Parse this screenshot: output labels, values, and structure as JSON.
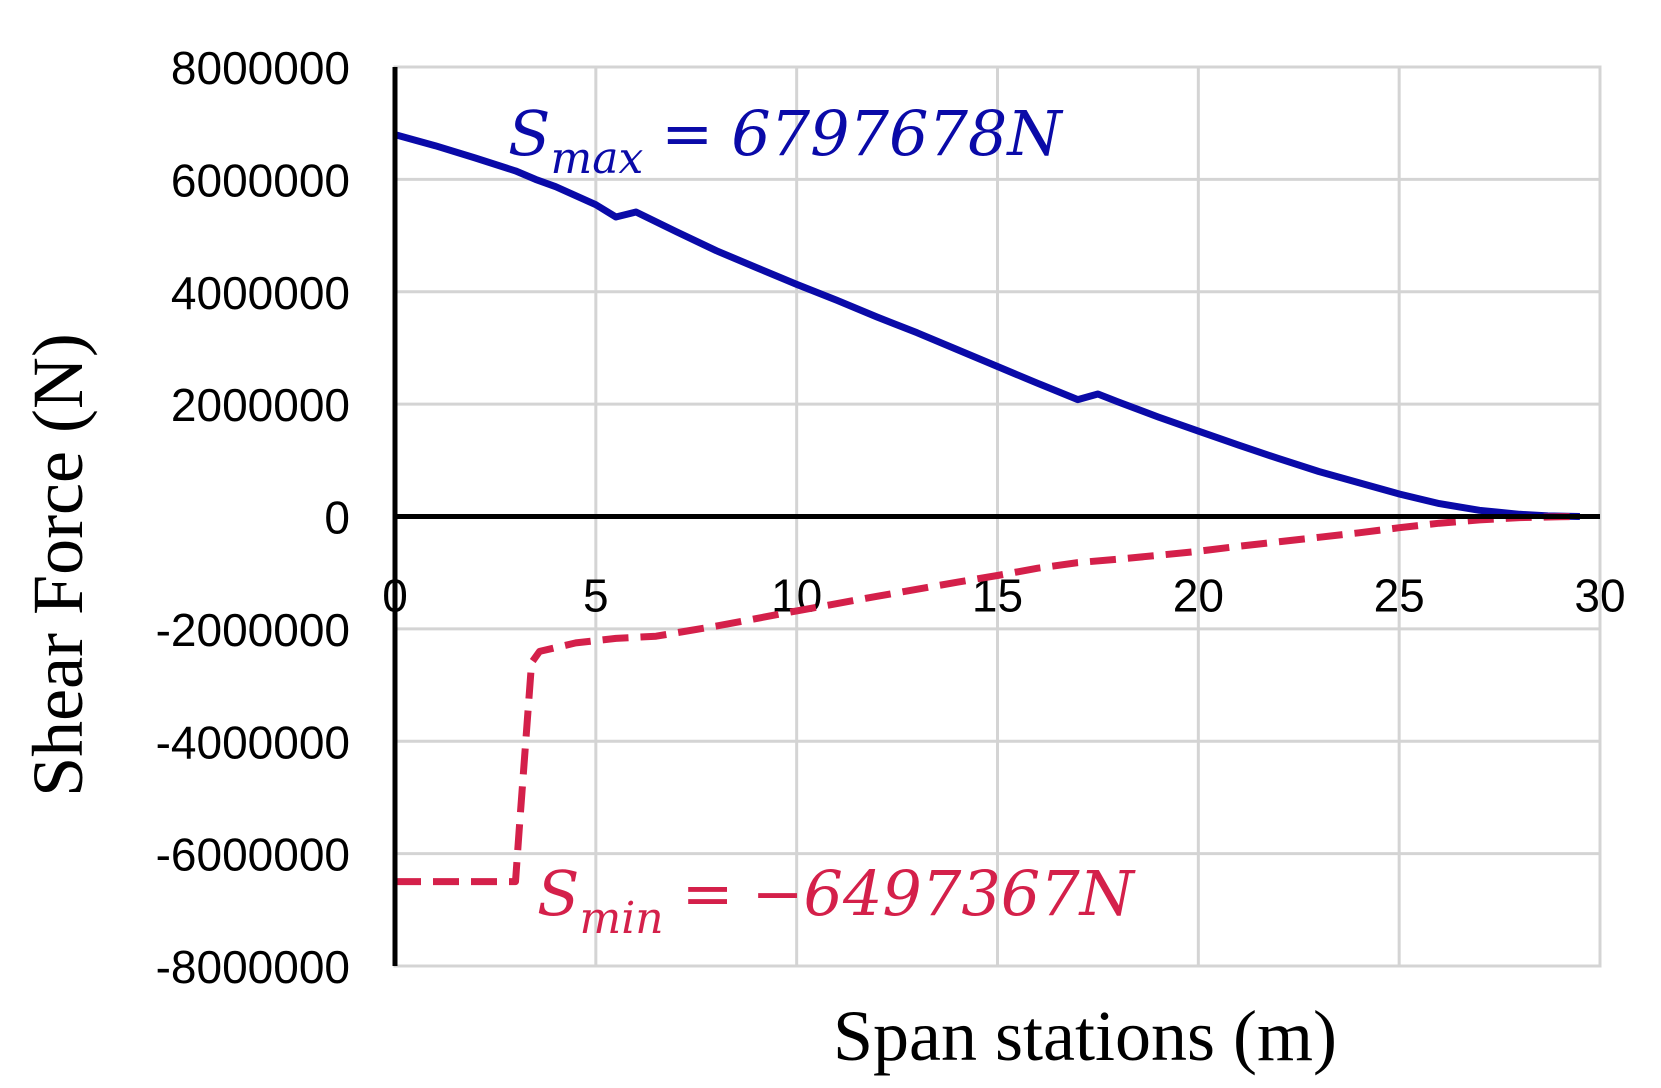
{
  "chart_data": {
    "type": "line",
    "xlabel": "Span stations (m)",
    "ylabel": "Shear Force (N)",
    "xlim": [
      0,
      30
    ],
    "ylim": [
      -8000000,
      8000000
    ],
    "x_ticks": [
      "0",
      "5",
      "10",
      "15",
      "20",
      "25",
      "30"
    ],
    "y_ticks": [
      "8000000",
      "6000000",
      "4000000",
      "2000000",
      "0",
      "-2000000",
      "-4000000",
      "-6000000",
      "-8000000"
    ],
    "grid": true,
    "colors": {
      "max": "#0a0aa8",
      "min": "#d4204a",
      "grid": "#d4d4d4",
      "axis": "#000000"
    },
    "series": [
      {
        "key": "max",
        "style": "solid",
        "x": [
          0,
          1,
          2,
          3,
          3.5,
          4,
          5,
          5.5,
          6,
          7,
          8,
          9,
          10,
          11,
          12,
          13,
          14,
          15,
          16,
          17,
          17.5,
          18,
          19,
          20,
          21,
          22,
          23,
          24,
          25,
          26,
          27,
          28,
          28.7,
          29.5
        ],
        "y": [
          6797678,
          6600000,
          6380000,
          6150000,
          6000000,
          5870000,
          5550000,
          5330000,
          5420000,
          5070000,
          4730000,
          4430000,
          4130000,
          3850000,
          3550000,
          3270000,
          2970000,
          2670000,
          2370000,
          2080000,
          2180000,
          2040000,
          1770000,
          1520000,
          1270000,
          1030000,
          800000,
          600000,
          400000,
          230000,
          110000,
          40000,
          10000,
          0
        ]
      },
      {
        "key": "min",
        "style": "dashed",
        "x": [
          0,
          3.0,
          3.1,
          3.4,
          3.6,
          4.5,
          5.5,
          6.5,
          8,
          10,
          12,
          14,
          15,
          16,
          17,
          18,
          19,
          20,
          21,
          22,
          23,
          24,
          25,
          26,
          27,
          28,
          29,
          29.5
        ],
        "y": [
          -6497367,
          -6497367,
          -5500000,
          -2600000,
          -2400000,
          -2250000,
          -2170000,
          -2130000,
          -1950000,
          -1680000,
          -1420000,
          -1170000,
          -1050000,
          -920000,
          -820000,
          -760000,
          -690000,
          -620000,
          -530000,
          -450000,
          -370000,
          -290000,
          -200000,
          -120000,
          -60000,
          -20000,
          -5000,
          0
        ]
      }
    ],
    "annotations": [
      {
        "key": "max",
        "symbol": "S",
        "sub": "max",
        "equals": "=",
        "value": "6797678N"
      },
      {
        "key": "min",
        "symbol": "S",
        "sub": "min",
        "equals": "=",
        "value": "−6497367N"
      }
    ]
  }
}
